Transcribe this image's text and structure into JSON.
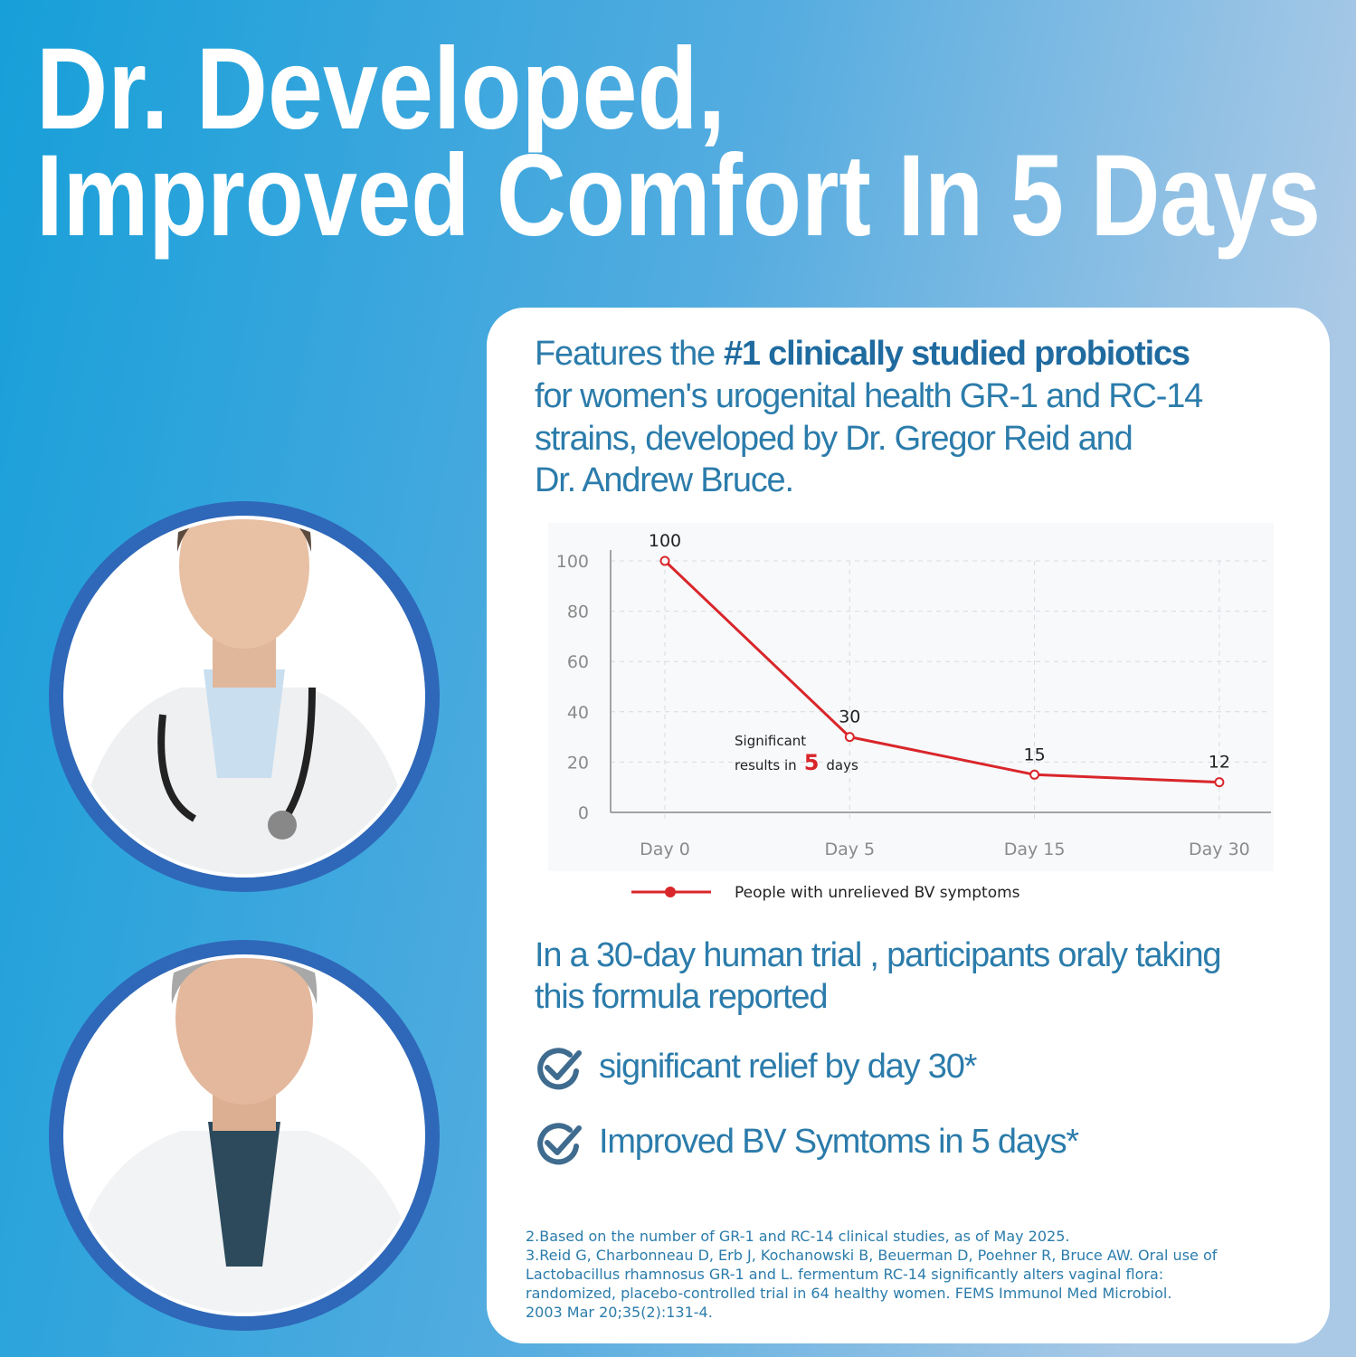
{
  "headline": [
    "Dr. Developed,",
    "Improved Comfort In 5 Days"
  ],
  "intro": {
    "lead": "Features the",
    "bold": "#1 clinically studied probiotics",
    "lines": [
      "for women's urogenital health  GR-1 and RC-14",
      "strains, developed by Dr. Gregor Reid and",
      "Dr. Andrew Bruce."
    ]
  },
  "chart_data": {
    "type": "line",
    "categories": [
      "Day 0",
      "Day 5",
      "Day 15",
      "Day 30"
    ],
    "series": [
      {
        "name": "People with unrelieved BV symptoms",
        "color": "#d9262b",
        "values": [
          100,
          30,
          15,
          12
        ]
      }
    ],
    "ylim": [
      0,
      100
    ],
    "yticks": [
      0,
      20,
      40,
      60,
      80,
      100
    ],
    "grid": true,
    "annotation": [
      "Significant",
      "results in",
      "5",
      "days"
    ]
  },
  "trial": {
    "lines": [
      "In a 30-day human trial , participants oraly taking",
      "this formula reported"
    ],
    "checks": [
      "significant relief by day 30*",
      "Improved BV Symtoms in 5 days*"
    ]
  },
  "footnotes": [
    "2.Based on the number of GR-1 and RC-14 clinical studies, as of May 2025.",
    "3.Reid G, Charbonneau D, Erb J, Kochanowski B, Beuerman D, Poehner R, Bruce AW. Oral use of",
    "Lactobacillus rhamnosus GR-1 and L. fermentum RC-14 significantly alters vaginal flora:",
    "randomized, placebo-controlled trial in 64 healthy women. FEMS Immunol Med Microbiol.",
    "2003 Mar 20;35(2):131-4."
  ]
}
